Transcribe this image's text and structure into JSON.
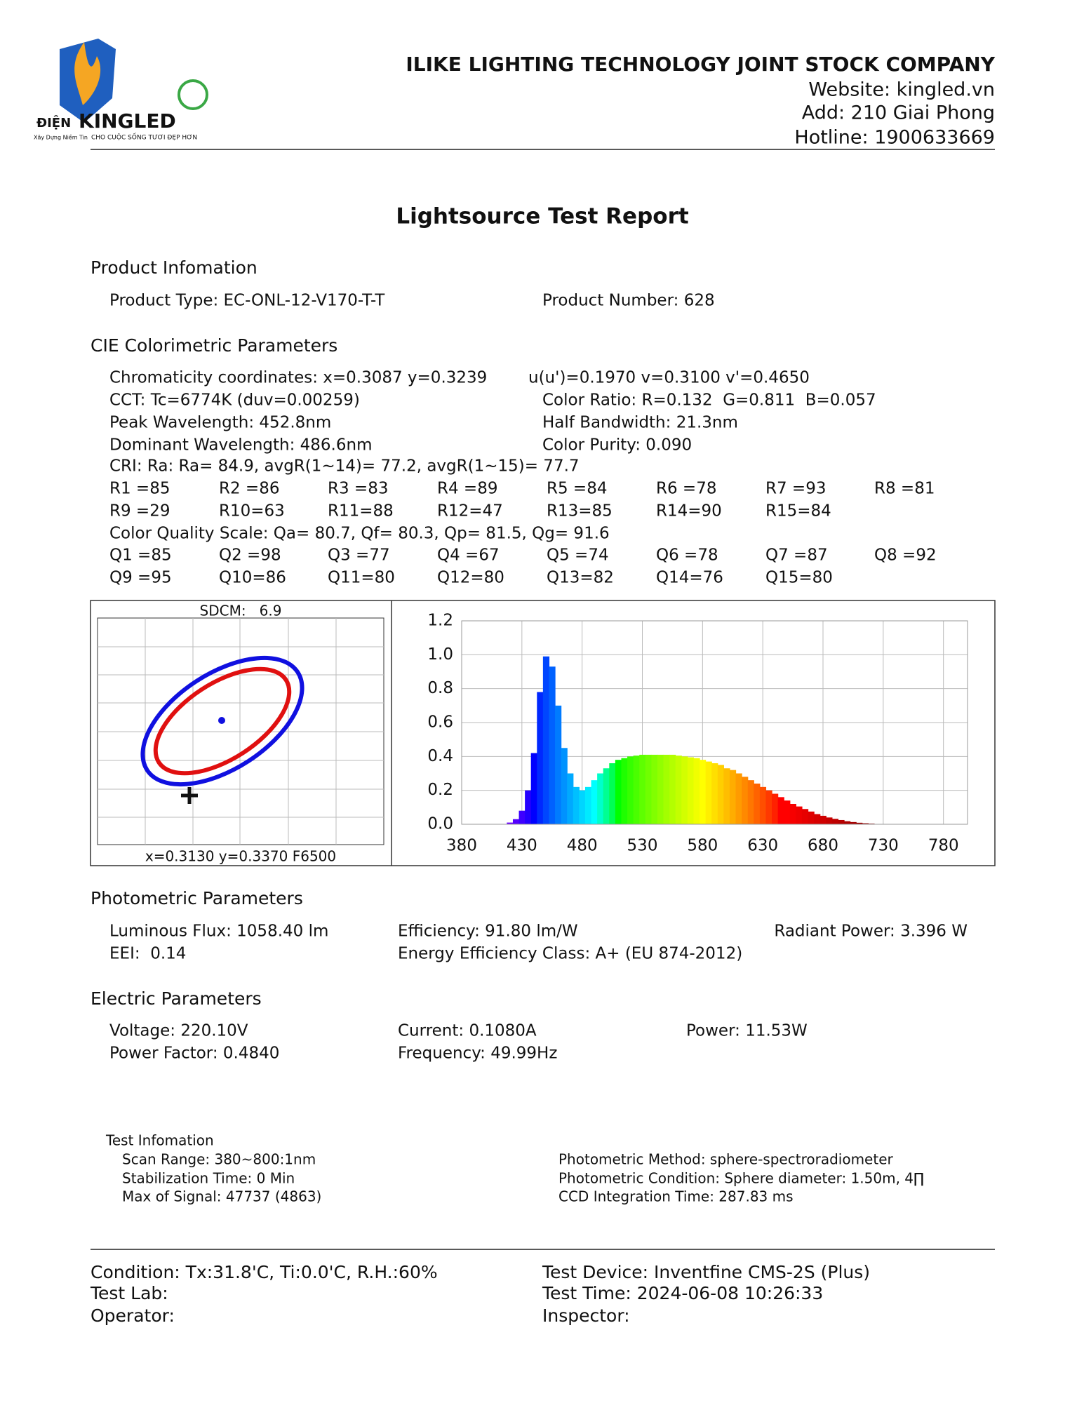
{
  "header": {
    "logo_prefix": "ĐIỆN",
    "logo_brand": "KINGLED",
    "logo_tagline": "CHO CUỘC SỐNG TƯƠI ĐẸP HƠN",
    "logo_slogan": "Xây Dựng Niềm Tin",
    "company": "ILIKE LIGHTING TECHNOLOGY JOINT STOCK COMPANY",
    "website": "Website: kingled.vn",
    "address": "Add: 210 Giai Phong",
    "hotline": "Hotline: 1900633669"
  },
  "title": "Lightsource Test Report",
  "product": {
    "heading": "Product Infomation",
    "type": "Product Type: EC-ONL-12-V170-T-T",
    "number": "Product Number: 628"
  },
  "cie": {
    "heading": "CIE Colorimetric Parameters",
    "chromaticity": "Chromaticity coordinates: x=0.3087 y=0.3239",
    "uv": "u(u')=0.1970 v=0.3100 v'=0.4650",
    "cct": "CCT: Tc=6774K (duv=0.00259)",
    "color_ratio": "Color Ratio: R=0.132  G=0.811  B=0.057",
    "peak": "Peak Wavelength: 452.8nm",
    "half_bandwidth": "Half Bandwidth: 21.3nm",
    "dominant": "Dominant Wavelength: 486.6nm",
    "purity": "Color Purity: 0.090",
    "cri": "CRI: Ra: Ra= 84.9, avgR(1~14)= 77.2, avgR(1~15)= 77.7",
    "r_values": [
      [
        "R1 =85",
        "R2 =86",
        "R3 =83",
        "R4 =89",
        "R5 =84",
        "R6 =78",
        "R7 =93",
        "R8 =81"
      ],
      [
        "R9 =29",
        "R10=63",
        "R11=88",
        "R12=47",
        "R13=85",
        "R14=90",
        "R15=84"
      ]
    ],
    "cqs": "Color Quality Scale: Qa= 80.7, Qf= 80.3, Qp= 81.5, Qg= 91.6",
    "q_values": [
      [
        "Q1 =85",
        "Q2 =98",
        "Q3 =77",
        "Q4 =67",
        "Q5 =74",
        "Q6 =78",
        "Q7 =87",
        "Q8 =92"
      ],
      [
        "Q9 =95",
        "Q10=86",
        "Q11=80",
        "Q12=80",
        "Q13=82",
        "Q14=76",
        "Q15=80"
      ]
    ]
  },
  "sdcm": {
    "label": "SDCM:   6.9",
    "reference": "x=0.3130 y=0.3370 F6500"
  },
  "chart_data": {
    "type": "spectrum",
    "x": [
      380,
      385,
      390,
      395,
      400,
      405,
      410,
      415,
      420,
      425,
      430,
      435,
      440,
      445,
      450,
      455,
      460,
      465,
      470,
      475,
      480,
      485,
      490,
      495,
      500,
      505,
      510,
      515,
      520,
      525,
      530,
      535,
      540,
      545,
      550,
      555,
      560,
      565,
      570,
      575,
      580,
      585,
      590,
      595,
      600,
      605,
      610,
      615,
      620,
      625,
      630,
      635,
      640,
      645,
      650,
      655,
      660,
      665,
      670,
      675,
      680,
      685,
      690,
      695,
      700,
      705,
      710,
      715,
      720,
      725,
      730,
      735,
      740,
      745,
      750,
      755,
      760,
      765,
      770,
      775,
      780
    ],
    "values": [
      0,
      0,
      0,
      0,
      0,
      0,
      0,
      0,
      0.01,
      0.03,
      0.08,
      0.2,
      0.42,
      0.78,
      0.99,
      0.93,
      0.7,
      0.45,
      0.3,
      0.22,
      0.2,
      0.22,
      0.26,
      0.3,
      0.33,
      0.36,
      0.38,
      0.39,
      0.4,
      0.405,
      0.41,
      0.41,
      0.41,
      0.41,
      0.41,
      0.41,
      0.405,
      0.4,
      0.395,
      0.39,
      0.38,
      0.37,
      0.36,
      0.35,
      0.33,
      0.32,
      0.3,
      0.28,
      0.26,
      0.24,
      0.22,
      0.2,
      0.18,
      0.16,
      0.14,
      0.12,
      0.105,
      0.09,
      0.075,
      0.06,
      0.05,
      0.04,
      0.032,
      0.025,
      0.018,
      0.013,
      0.009,
      0.006,
      0.004,
      0.002,
      0.001,
      0,
      0,
      0,
      0,
      0,
      0,
      0,
      0,
      0,
      0
    ],
    "xlim": [
      380,
      800
    ],
    "xticks": [
      380,
      430,
      480,
      530,
      580,
      630,
      680,
      730,
      780
    ],
    "ylim": [
      0,
      1.2
    ],
    "yticks": [
      {
        "value": 0,
        "label": "0.0"
      },
      0.2,
      0.4,
      0.6,
      0.8,
      {
        "value": 1,
        "label": "1.0"
      },
      1.2
    ],
    "grid": true
  },
  "photometric": {
    "heading": "Photometric Parameters",
    "flux": "Luminous Flux: 1058.40 lm",
    "efficiency": "Efficiency: 91.80 lm/W",
    "radiant": "Radiant Power: 3.396 W",
    "eei": "EEI:  0.14",
    "energy_class": "Energy Efficiency Class: A+ (EU 874-2012)"
  },
  "electric": {
    "heading": "Electric Parameters",
    "voltage": "Voltage: 220.10V",
    "current": "Current: 0.1080A",
    "power": "Power: 11.53W",
    "power_factor": "Power Factor: 0.4840",
    "frequency": "Frequency: 49.99Hz"
  },
  "test": {
    "heading": "Test Infomation",
    "scan_range": "Scan Range: 380~800:1nm",
    "stabilization": "Stabilization Time: 0 Min",
    "max_signal": "Max of Signal: 47737 (4863)",
    "method": "Photometric Method: sphere-spectroradiometer",
    "condition": "Photometric Condition: Sphere diameter: 1.50m, 4∏",
    "ccd": "CCD Integration Time: 287.83 ms"
  },
  "footer": {
    "condition": "Condition: Tx:31.8'C, Ti:0.0'C, R.H.:60%",
    "device": "Test Device: Inventfine CMS-2S (Plus)",
    "lab": "Test Lab:",
    "time": "Test Time: 2024-06-08 10:26:33",
    "operator": "Operator:",
    "inspector": "Inspector:"
  }
}
